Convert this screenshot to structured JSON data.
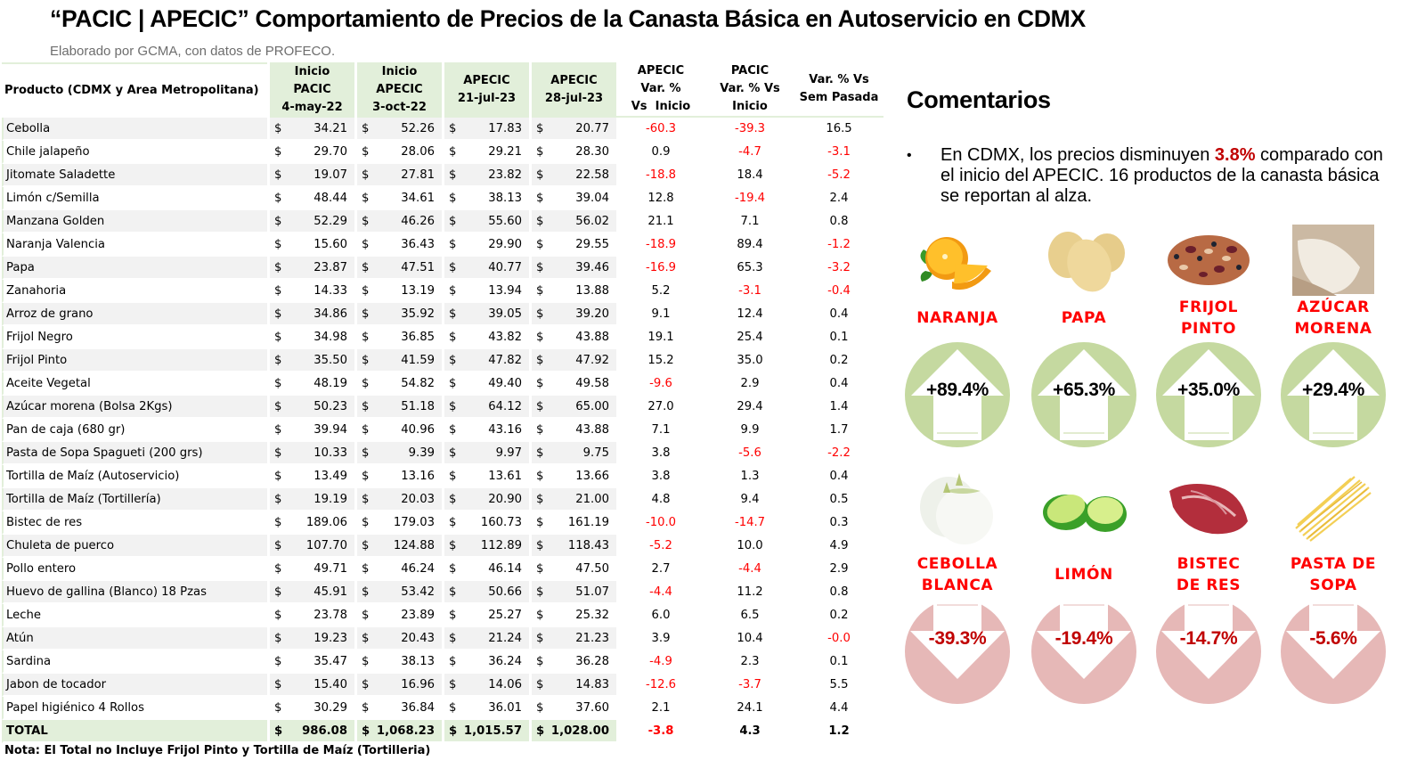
{
  "header": {
    "title": "“PACIC | APECIC” Comportamiento de Precios de la Canasta Básica en Autoservicio en CDMX",
    "subtitle": "Elaborado por GCMA, con datos de PROFECO."
  },
  "table": {
    "headers": {
      "product": "Producto (CDMX y Area Metropolitana)",
      "inicio_pacic": [
        "Inicio",
        "PACIC",
        "4-may-22"
      ],
      "inicio_apecic": [
        "Inicio",
        "APECIC",
        "3-oct-22"
      ],
      "apecic_1": [
        "APECIC",
        "21-jul-23"
      ],
      "apecic_2": [
        "APECIC",
        "28-jul-23"
      ],
      "var_apecic": [
        "APECIC",
        "Var. %",
        "Vs  Inicio"
      ],
      "var_pacic": [
        "PACIC",
        "Var. % Vs",
        "Inicio"
      ],
      "var_sem": [
        "Var. % Vs",
        "Sem Pasada"
      ]
    },
    "currency_symbol": "$",
    "rows": [
      {
        "product": "Cebolla",
        "p1": "34.21",
        "p2": "52.26",
        "p3": "17.83",
        "p4": "20.77",
        "v1": "-60.3",
        "v2": "-39.3",
        "v3": "16.5"
      },
      {
        "product": "Chile jalapeño",
        "p1": "29.70",
        "p2": "28.06",
        "p3": "29.21",
        "p4": "28.30",
        "v1": "0.9",
        "v2": "-4.7",
        "v3": "-3.1"
      },
      {
        "product": "Jitomate Saladette",
        "p1": "19.07",
        "p2": "27.81",
        "p3": "23.82",
        "p4": "22.58",
        "v1": "-18.8",
        "v2": "18.4",
        "v3": "-5.2"
      },
      {
        "product": "Limón c/Semilla",
        "p1": "48.44",
        "p2": "34.61",
        "p3": "38.13",
        "p4": "39.04",
        "v1": "12.8",
        "v2": "-19.4",
        "v3": "2.4"
      },
      {
        "product": "Manzana Golden",
        "p1": "52.29",
        "p2": "46.26",
        "p3": "55.60",
        "p4": "56.02",
        "v1": "21.1",
        "v2": "7.1",
        "v3": "0.8"
      },
      {
        "product": "Naranja Valencia",
        "p1": "15.60",
        "p2": "36.43",
        "p3": "29.90",
        "p4": "29.55",
        "v1": "-18.9",
        "v2": "89.4",
        "v3": "-1.2"
      },
      {
        "product": "Papa",
        "p1": "23.87",
        "p2": "47.51",
        "p3": "40.77",
        "p4": "39.46",
        "v1": "-16.9",
        "v2": "65.3",
        "v3": "-3.2"
      },
      {
        "product": "Zanahoria",
        "p1": "14.33",
        "p2": "13.19",
        "p3": "13.94",
        "p4": "13.88",
        "v1": "5.2",
        "v2": "-3.1",
        "v3": "-0.4"
      },
      {
        "product": "Arroz de grano",
        "p1": "34.86",
        "p2": "35.92",
        "p3": "39.05",
        "p4": "39.20",
        "v1": "9.1",
        "v2": "12.4",
        "v3": "0.4"
      },
      {
        "product": "Frijol Negro",
        "p1": "34.98",
        "p2": "36.85",
        "p3": "43.82",
        "p4": "43.88",
        "v1": "19.1",
        "v2": "25.4",
        "v3": "0.1"
      },
      {
        "product": "Frijol Pinto",
        "p1": "35.50",
        "p2": "41.59",
        "p3": "47.82",
        "p4": "47.92",
        "v1": "15.2",
        "v2": "35.0",
        "v3": "0.2"
      },
      {
        "product": "Aceite Vegetal",
        "p1": "48.19",
        "p2": "54.82",
        "p3": "49.40",
        "p4": "49.58",
        "v1": "-9.6",
        "v2": "2.9",
        "v3": "0.4"
      },
      {
        "product": "Azúcar morena (Bolsa 2Kgs)",
        "p1": "50.23",
        "p2": "51.18",
        "p3": "64.12",
        "p4": "65.00",
        "v1": "27.0",
        "v2": "29.4",
        "v3": "1.4"
      },
      {
        "product": "Pan de caja (680 gr)",
        "p1": "39.94",
        "p2": "40.96",
        "p3": "43.16",
        "p4": "43.88",
        "v1": "7.1",
        "v2": "9.9",
        "v3": "1.7"
      },
      {
        "product": "Pasta de Sopa Spagueti (200 grs)",
        "p1": "10.33",
        "p2": "9.39",
        "p3": "9.97",
        "p4": "9.75",
        "v1": "3.8",
        "v2": "-5.6",
        "v3": "-2.2"
      },
      {
        "product": "Tortilla de Maíz (Autoservicio)",
        "p1": "13.49",
        "p2": "13.16",
        "p3": "13.61",
        "p4": "13.66",
        "v1": "3.8",
        "v2": "1.3",
        "v3": "0.4"
      },
      {
        "product": "Tortilla de Maíz (Tortillería)",
        "p1": "19.19",
        "p2": "20.03",
        "p3": "20.90",
        "p4": "21.00",
        "v1": "4.8",
        "v2": "9.4",
        "v3": "0.5"
      },
      {
        "product": "Bistec de res",
        "p1": "189.06",
        "p2": "179.03",
        "p3": "160.73",
        "p4": "161.19",
        "v1": "-10.0",
        "v2": "-14.7",
        "v3": "0.3"
      },
      {
        "product": "Chuleta de puerco",
        "p1": "107.70",
        "p2": "124.88",
        "p3": "112.89",
        "p4": "118.43",
        "v1": "-5.2",
        "v2": "10.0",
        "v3": "4.9"
      },
      {
        "product": "Pollo entero",
        "p1": "49.71",
        "p2": "46.24",
        "p3": "46.14",
        "p4": "47.50",
        "v1": "2.7",
        "v2": "-4.4",
        "v3": "2.9"
      },
      {
        "product": "Huevo de gallina (Blanco) 18 Pzas",
        "p1": "45.91",
        "p2": "53.42",
        "p3": "50.66",
        "p4": "51.07",
        "v1": "-4.4",
        "v2": "11.2",
        "v3": "0.8"
      },
      {
        "product": "Leche",
        "p1": "23.78",
        "p2": "23.89",
        "p3": "25.27",
        "p4": "25.32",
        "v1": "6.0",
        "v2": "6.5",
        "v3": "0.2"
      },
      {
        "product": "Atún",
        "p1": "19.23",
        "p2": "20.43",
        "p3": "21.24",
        "p4": "21.23",
        "v1": "3.9",
        "v2": "10.4",
        "v3": "-0.0"
      },
      {
        "product": "Sardina",
        "p1": "35.47",
        "p2": "38.13",
        "p3": "36.24",
        "p4": "36.28",
        "v1": "-4.9",
        "v2": "2.3",
        "v3": "0.1"
      },
      {
        "product": "Jabon de tocador",
        "p1": "15.40",
        "p2": "16.96",
        "p3": "14.06",
        "p4": "14.83",
        "v1": "-12.6",
        "v2": "-3.7",
        "v3": "5.5"
      },
      {
        "product": "Papel higiénico 4 Rollos",
        "p1": "30.29",
        "p2": "36.84",
        "p3": "36.01",
        "p4": "37.60",
        "v1": "2.1",
        "v2": "24.1",
        "v3": "4.4"
      }
    ],
    "total": {
      "product": "TOTAL",
      "p1": "986.08",
      "p2": "1,068.23",
      "p3": "1,015.57",
      "p4": "1,028.00",
      "v1": "-3.8",
      "v2": "4.3",
      "v3": "1.2"
    },
    "note": "Nota: El Total no Incluye Frijol Pinto y Tortilla de Maíz (Tortilleria)"
  },
  "comments": {
    "title": "Comentarios",
    "bullet": "•",
    "text_before": "En CDMX, los precios disminuyen ",
    "highlight": "3.8%",
    "text_after": " comparado con el inicio del APECIC. 16 productos de la canasta básica se reportan al alza."
  },
  "colors": {
    "up_circle": "#c5d9a0",
    "down_circle": "#e6b8b7",
    "negative": "#ff0000",
    "label": "#ff0000",
    "header_green": "#e2efda"
  },
  "highlights": {
    "up": [
      {
        "label": [
          "NARANJA"
        ],
        "value": "+89.4%",
        "icon": "orange-icon"
      },
      {
        "label": [
          "PAPA"
        ],
        "value": "+65.3%",
        "icon": "potato-icon"
      },
      {
        "label": [
          "FRIJOL",
          "PINTO"
        ],
        "value": "+35.0%",
        "icon": "beans-icon"
      },
      {
        "label": [
          "AZÚCAR",
          "MORENA"
        ],
        "value": "+29.4%",
        "icon": "sugar-icon"
      }
    ],
    "down": [
      {
        "label": [
          "CEBOLLA",
          "BLANCA"
        ],
        "value": "-39.3%",
        "icon": "onion-icon"
      },
      {
        "label": [
          "LIMÓN"
        ],
        "value": "-19.4%",
        "icon": "lime-icon"
      },
      {
        "label": [
          "BISTEC",
          "DE RES"
        ],
        "value": "-14.7%",
        "icon": "steak-icon"
      },
      {
        "label": [
          "PASTA DE",
          "SOPA"
        ],
        "value": "-5.6%",
        "icon": "pasta-icon"
      }
    ]
  }
}
